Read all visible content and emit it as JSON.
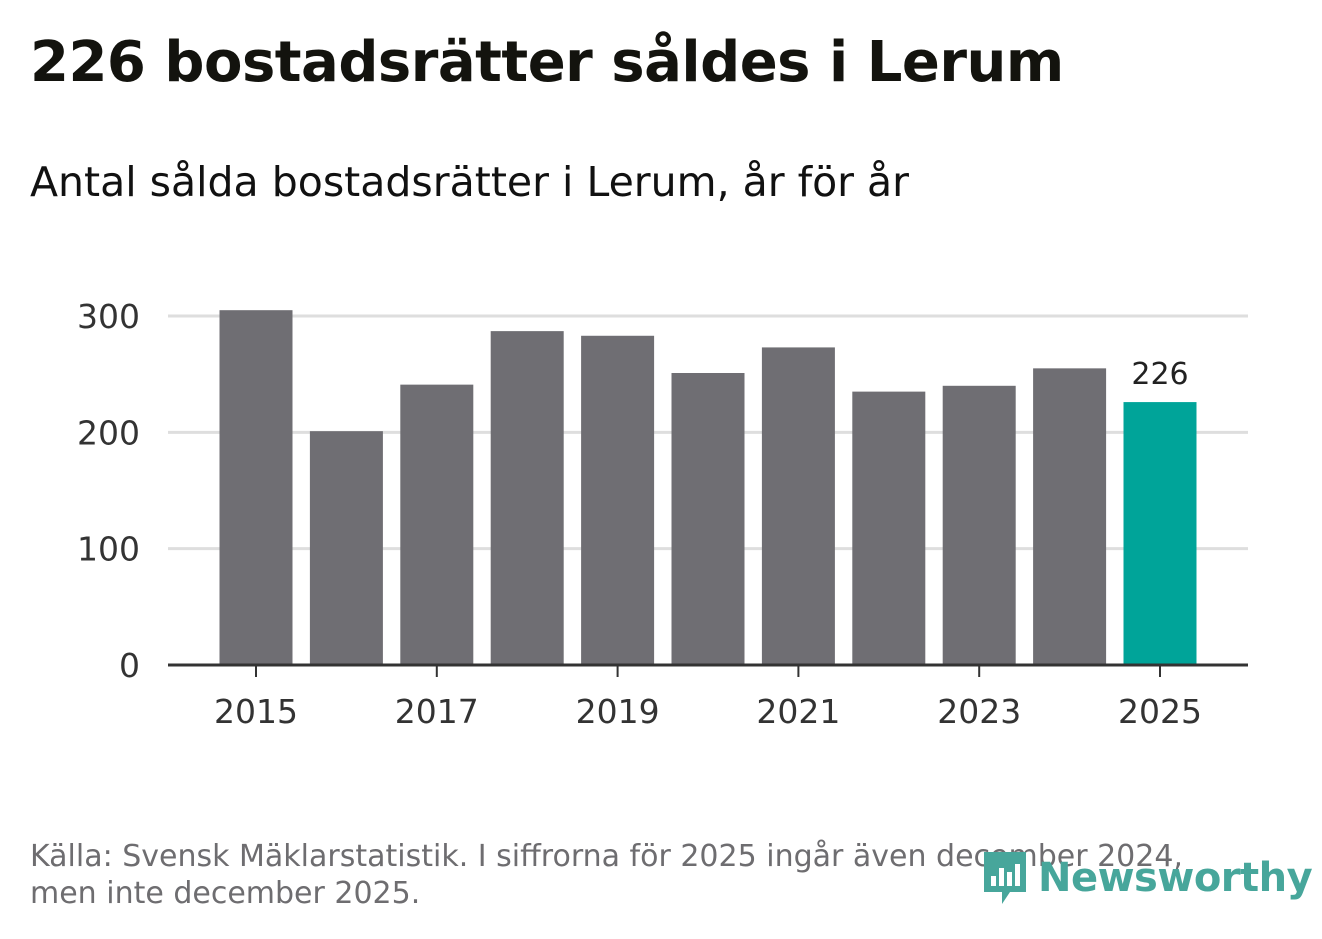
{
  "header": {
    "title": "226 bostadsrätter såldes i Lerum",
    "subtitle": "Antal sålda bostadsrätter i Lerum, år för år"
  },
  "chart_data": {
    "type": "bar",
    "categories": [
      "2015",
      "2016",
      "2017",
      "2018",
      "2019",
      "2020",
      "2021",
      "2022",
      "2023",
      "2024",
      "2025"
    ],
    "values": [
      305,
      201,
      241,
      287,
      283,
      251,
      273,
      235,
      240,
      255,
      226
    ],
    "x_tick_labels": [
      "2015",
      "2017",
      "2019",
      "2021",
      "2023",
      "2025"
    ],
    "y_ticks": [
      0,
      100,
      200,
      300
    ],
    "ylim": [
      0,
      320
    ],
    "title": "226 bostadsrätter såldes i Lerum",
    "subtitle": "Antal sålda bostadsrätter i Lerum, år för år",
    "highlight_label": "226",
    "highlight_index": 10,
    "colors": {
      "bar": "#6f6e73",
      "highlight": "#00a499",
      "grid": "#dedede",
      "axis": "#333333"
    }
  },
  "footer": {
    "source": "Källa: Svensk Mäklarstatistik. I siffrorna för 2025 ingår även december 2024, men inte december 2025."
  },
  "brand": {
    "name": "Newsworthy",
    "icon": "newsworthy-logo-icon",
    "color": "#47a69b"
  }
}
